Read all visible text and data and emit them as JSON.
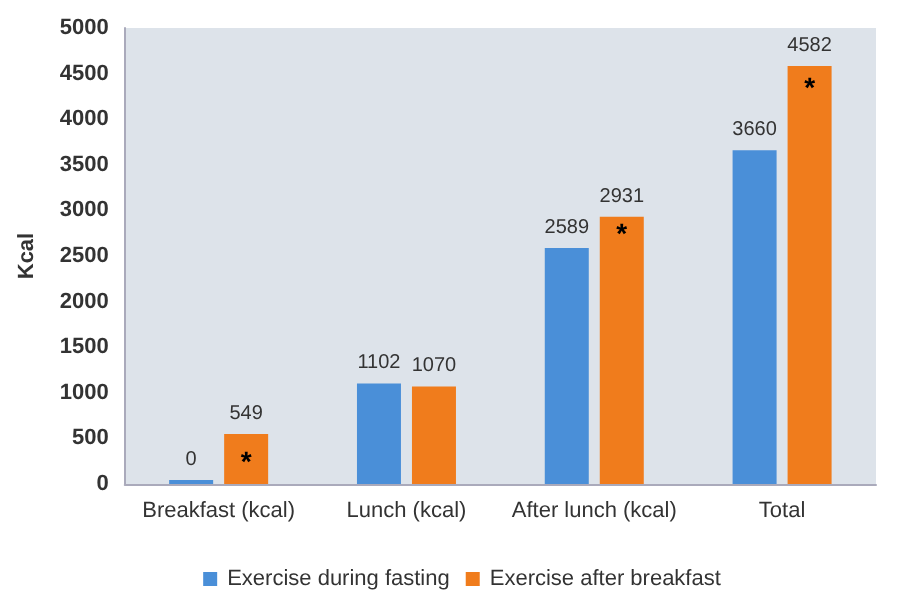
{
  "chart_data": {
    "type": "bar",
    "ylabel": "Kcal",
    "categories": [
      "Breakfast (kcal)",
      "Lunch (kcal)",
      "After lunch (kcal)",
      "Total"
    ],
    "series": [
      {
        "name": "Exercise during fasting",
        "color": "#4a8fd8",
        "values": [
          0,
          1102,
          2589,
          3660
        ]
      },
      {
        "name": "Exercise after breakfast",
        "color": "#f07c1c",
        "values": [
          549,
          1070,
          2931,
          4582
        ]
      }
    ],
    "ylim": [
      0,
      5000
    ],
    "yticks": [
      0,
      500,
      1000,
      1500,
      2000,
      2500,
      3000,
      3500,
      4000,
      4500,
      5000
    ],
    "data_labels": true,
    "grid": false,
    "legend": "bottom",
    "annotations": [
      {
        "text": "*",
        "x": "Breakfast (kcal)",
        "y": 250
      },
      {
        "text": "*",
        "x": "After lunch (kcal)",
        "y": 2750
      },
      {
        "text": "*",
        "x": "Total",
        "y": 4350
      }
    ]
  }
}
